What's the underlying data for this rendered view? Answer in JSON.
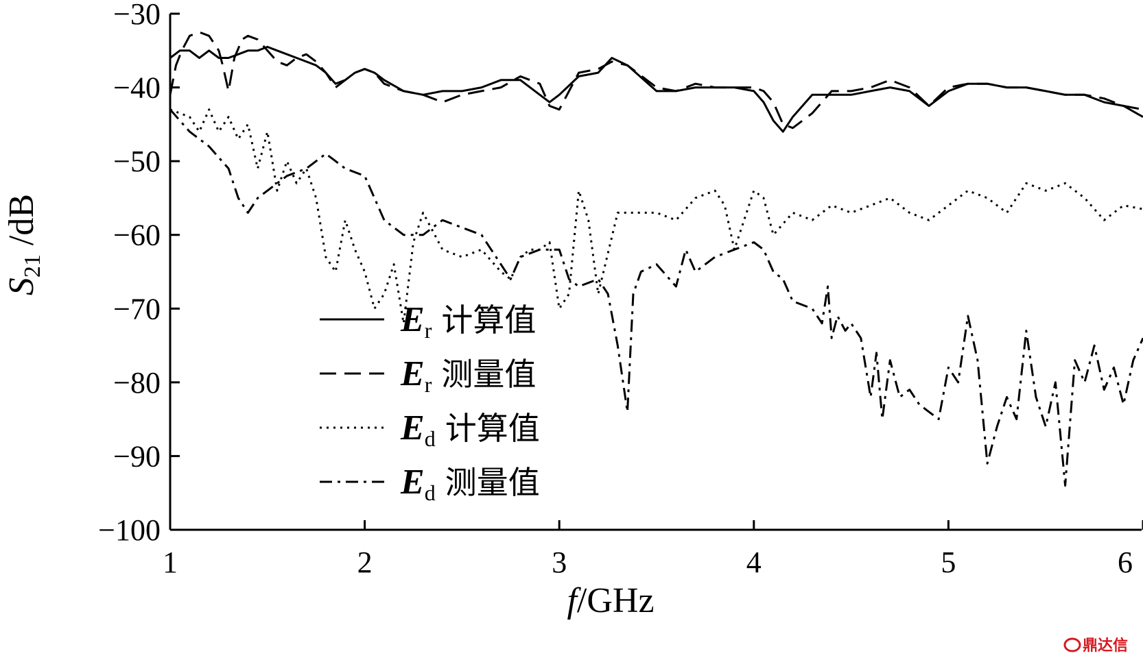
{
  "chart_data": {
    "type": "line",
    "xlabel": {
      "var": "f",
      "unit": "/GHz"
    },
    "ylabel": {
      "var": "S",
      "sub": "21",
      "unit": " /dB"
    },
    "xlim": [
      1,
      6
    ],
    "ylim": [
      -100,
      -30
    ],
    "xticks": [
      1,
      2,
      3,
      4,
      5,
      6
    ],
    "yticks": [
      -30,
      -40,
      -50,
      -60,
      -70,
      -80,
      -90,
      -100
    ],
    "xtick_labels": [
      "1",
      "2",
      "3",
      "4",
      "5",
      "6"
    ],
    "ytick_labels": [
      "−30",
      "−40",
      "−50",
      "−60",
      "−70",
      "−80",
      "−90",
      "−100"
    ],
    "grid": false,
    "legend_position": "center-left",
    "series": [
      {
        "name": "Er 计算值",
        "var": "E",
        "sub": "r",
        "label": "计算值",
        "dash": "",
        "x": [
          1.0,
          1.05,
          1.1,
          1.15,
          1.2,
          1.25,
          1.3,
          1.35,
          1.4,
          1.45,
          1.5,
          1.55,
          1.6,
          1.65,
          1.7,
          1.75,
          1.8,
          1.85,
          1.9,
          1.95,
          2.0,
          2.05,
          2.1,
          2.2,
          2.3,
          2.4,
          2.5,
          2.6,
          2.7,
          2.8,
          2.9,
          2.95,
          3.0,
          3.1,
          3.2,
          3.27,
          3.35,
          3.5,
          3.6,
          3.7,
          3.8,
          3.9,
          4.0,
          4.05,
          4.1,
          4.15,
          4.2,
          4.3,
          4.4,
          4.5,
          4.6,
          4.7,
          4.8,
          4.9,
          5.0,
          5.1,
          5.2,
          5.3,
          5.4,
          5.5,
          5.6,
          5.7,
          5.8,
          5.9,
          6.0
        ],
        "y": [
          -36,
          -35,
          -35,
          -36,
          -35,
          -36,
          -36,
          -35.5,
          -35,
          -35,
          -34.5,
          -35,
          -35.5,
          -36,
          -36.5,
          -37,
          -38,
          -39.5,
          -39,
          -38,
          -37.5,
          -38,
          -39,
          -40.5,
          -41,
          -40.5,
          -40.5,
          -40,
          -39,
          -39,
          -41,
          -42,
          -41,
          -38.5,
          -38,
          -36,
          -37,
          -40.5,
          -40.5,
          -40,
          -40,
          -40,
          -40.5,
          -42,
          -44.5,
          -46,
          -44,
          -41,
          -41,
          -41,
          -40.5,
          -40,
          -40.5,
          -42.5,
          -40.5,
          -39.5,
          -39.5,
          -40,
          -40,
          -40.5,
          -41,
          -41,
          -42,
          -42.5,
          -44
        ]
      },
      {
        "name": "Er 测量值",
        "var": "E",
        "sub": "r",
        "label": "测量值",
        "dash": "24,12",
        "x": [
          1.0,
          1.03,
          1.06,
          1.1,
          1.15,
          1.2,
          1.25,
          1.27,
          1.3,
          1.33,
          1.37,
          1.4,
          1.45,
          1.5,
          1.55,
          1.6,
          1.65,
          1.7,
          1.75,
          1.8,
          1.85,
          1.9,
          1.95,
          2.0,
          2.05,
          2.1,
          2.2,
          2.3,
          2.4,
          2.5,
          2.6,
          2.7,
          2.8,
          2.9,
          2.95,
          3.0,
          3.1,
          3.2,
          3.27,
          3.35,
          3.5,
          3.6,
          3.7,
          3.8,
          3.9,
          4.0,
          4.05,
          4.1,
          4.15,
          4.2,
          4.3,
          4.4,
          4.5,
          4.6,
          4.7,
          4.8,
          4.9,
          5.0,
          5.1,
          5.2,
          5.3,
          5.4,
          5.5,
          5.6,
          5.7,
          5.8,
          5.9,
          6.0
        ],
        "y": [
          -41,
          -37,
          -35,
          -33,
          -32.5,
          -33,
          -35,
          -37,
          -40.5,
          -36,
          -33.5,
          -33,
          -33.5,
          -35,
          -36.5,
          -37,
          -36,
          -35.5,
          -36.5,
          -38,
          -40,
          -39,
          -38,
          -37.5,
          -38,
          -39.5,
          -40.5,
          -41,
          -42,
          -41,
          -40.5,
          -40,
          -38.5,
          -39.5,
          -42.5,
          -43,
          -38,
          -37.5,
          -36.5,
          -37,
          -40,
          -40.5,
          -39.5,
          -40,
          -40,
          -40,
          -40.5,
          -42,
          -45,
          -45.5,
          -43.5,
          -40.5,
          -40.5,
          -40,
          -39,
          -40,
          -42.5,
          -40,
          -39.5,
          -39.5,
          -40,
          -40,
          -40.5,
          -41,
          -41,
          -41.5,
          -42.5,
          -43
        ]
      },
      {
        "name": "Ed 计算值",
        "var": "E",
        "sub": "d",
        "label": "计算值",
        "dash": "3,7",
        "x": [
          1.0,
          1.1,
          1.15,
          1.2,
          1.25,
          1.3,
          1.35,
          1.4,
          1.45,
          1.5,
          1.55,
          1.6,
          1.65,
          1.7,
          1.75,
          1.8,
          1.85,
          1.9,
          1.95,
          2.0,
          2.05,
          2.1,
          2.15,
          2.2,
          2.25,
          2.3,
          2.4,
          2.5,
          2.6,
          2.7,
          2.75,
          2.8,
          2.85,
          2.9,
          2.95,
          3.0,
          3.05,
          3.1,
          3.15,
          3.2,
          3.3,
          3.4,
          3.5,
          3.6,
          3.7,
          3.8,
          3.85,
          3.9,
          4.0,
          4.05,
          4.1,
          4.2,
          4.3,
          4.4,
          4.5,
          4.6,
          4.7,
          4.8,
          4.9,
          5.0,
          5.1,
          5.2,
          5.3,
          5.4,
          5.5,
          5.6,
          5.7,
          5.8,
          5.9,
          6.0
        ],
        "y": [
          -43,
          -44,
          -46,
          -43,
          -46,
          -44,
          -47,
          -45,
          -51,
          -46,
          -54,
          -50,
          -53,
          -51,
          -55,
          -63,
          -65,
          -58,
          -62,
          -65,
          -70,
          -68,
          -64,
          -72,
          -61,
          -57,
          -62,
          -63,
          -62,
          -65,
          -66,
          -63,
          -62,
          -62,
          -61,
          -70,
          -68,
          -54,
          -58,
          -68,
          -57,
          -57,
          -57,
          -58,
          -55,
          -54,
          -56,
          -62,
          -54,
          -55,
          -60,
          -57,
          -58,
          -56,
          -57,
          -56,
          -55,
          -57,
          -58,
          -56,
          -54,
          -55,
          -57,
          -53,
          -54,
          -53,
          -55,
          -58,
          -56,
          -56.5
        ]
      },
      {
        "name": "Ed 测量值",
        "var": "E",
        "sub": "d",
        "label": "测量值",
        "dash": "18,8,4,8",
        "x": [
          1.0,
          1.1,
          1.2,
          1.3,
          1.35,
          1.4,
          1.45,
          1.5,
          1.6,
          1.7,
          1.8,
          1.85,
          1.9,
          2.0,
          2.05,
          2.1,
          2.2,
          2.3,
          2.4,
          2.5,
          2.6,
          2.7,
          2.75,
          2.8,
          2.9,
          3.0,
          3.05,
          3.1,
          3.2,
          3.25,
          3.3,
          3.35,
          3.38,
          3.42,
          3.5,
          3.6,
          3.65,
          3.7,
          3.8,
          3.9,
          4.0,
          4.05,
          4.1,
          4.15,
          4.2,
          4.3,
          4.35,
          4.38,
          4.4,
          4.43,
          4.47,
          4.5,
          4.55,
          4.6,
          4.63,
          4.66,
          4.7,
          4.75,
          4.8,
          4.85,
          4.9,
          4.95,
          5.0,
          5.05,
          5.1,
          5.15,
          5.2,
          5.25,
          5.3,
          5.35,
          5.4,
          5.45,
          5.5,
          5.55,
          5.6,
          5.65,
          5.7,
          5.75,
          5.8,
          5.85,
          5.9,
          5.95,
          6.0
        ],
        "y": [
          -43,
          -46,
          -48,
          -51,
          -55,
          -57,
          -55,
          -54,
          -52,
          -51,
          -49,
          -50,
          -51,
          -52,
          -55,
          -58,
          -60,
          -60,
          -58,
          -59,
          -60,
          -64,
          -66,
          -63,
          -62,
          -62,
          -66,
          -67,
          -66,
          -68,
          -75,
          -84,
          -68,
          -65,
          -64,
          -67,
          -62,
          -65,
          -63,
          -62,
          -61,
          -62,
          -65,
          -66,
          -69,
          -70,
          -72,
          -67,
          -74,
          -71,
          -73,
          -72,
          -74,
          -82,
          -76,
          -85,
          -77,
          -82,
          -81,
          -83,
          -84,
          -85,
          -78,
          -80,
          -71,
          -77,
          -91,
          -86,
          -82,
          -85,
          -73,
          -82,
          -86,
          -80,
          -94,
          -77,
          -80,
          -75,
          -81,
          -78,
          -83,
          -77,
          -74
        ]
      }
    ]
  },
  "watermark": {
    "text": "鼎达信",
    "color": "#d71920"
  }
}
